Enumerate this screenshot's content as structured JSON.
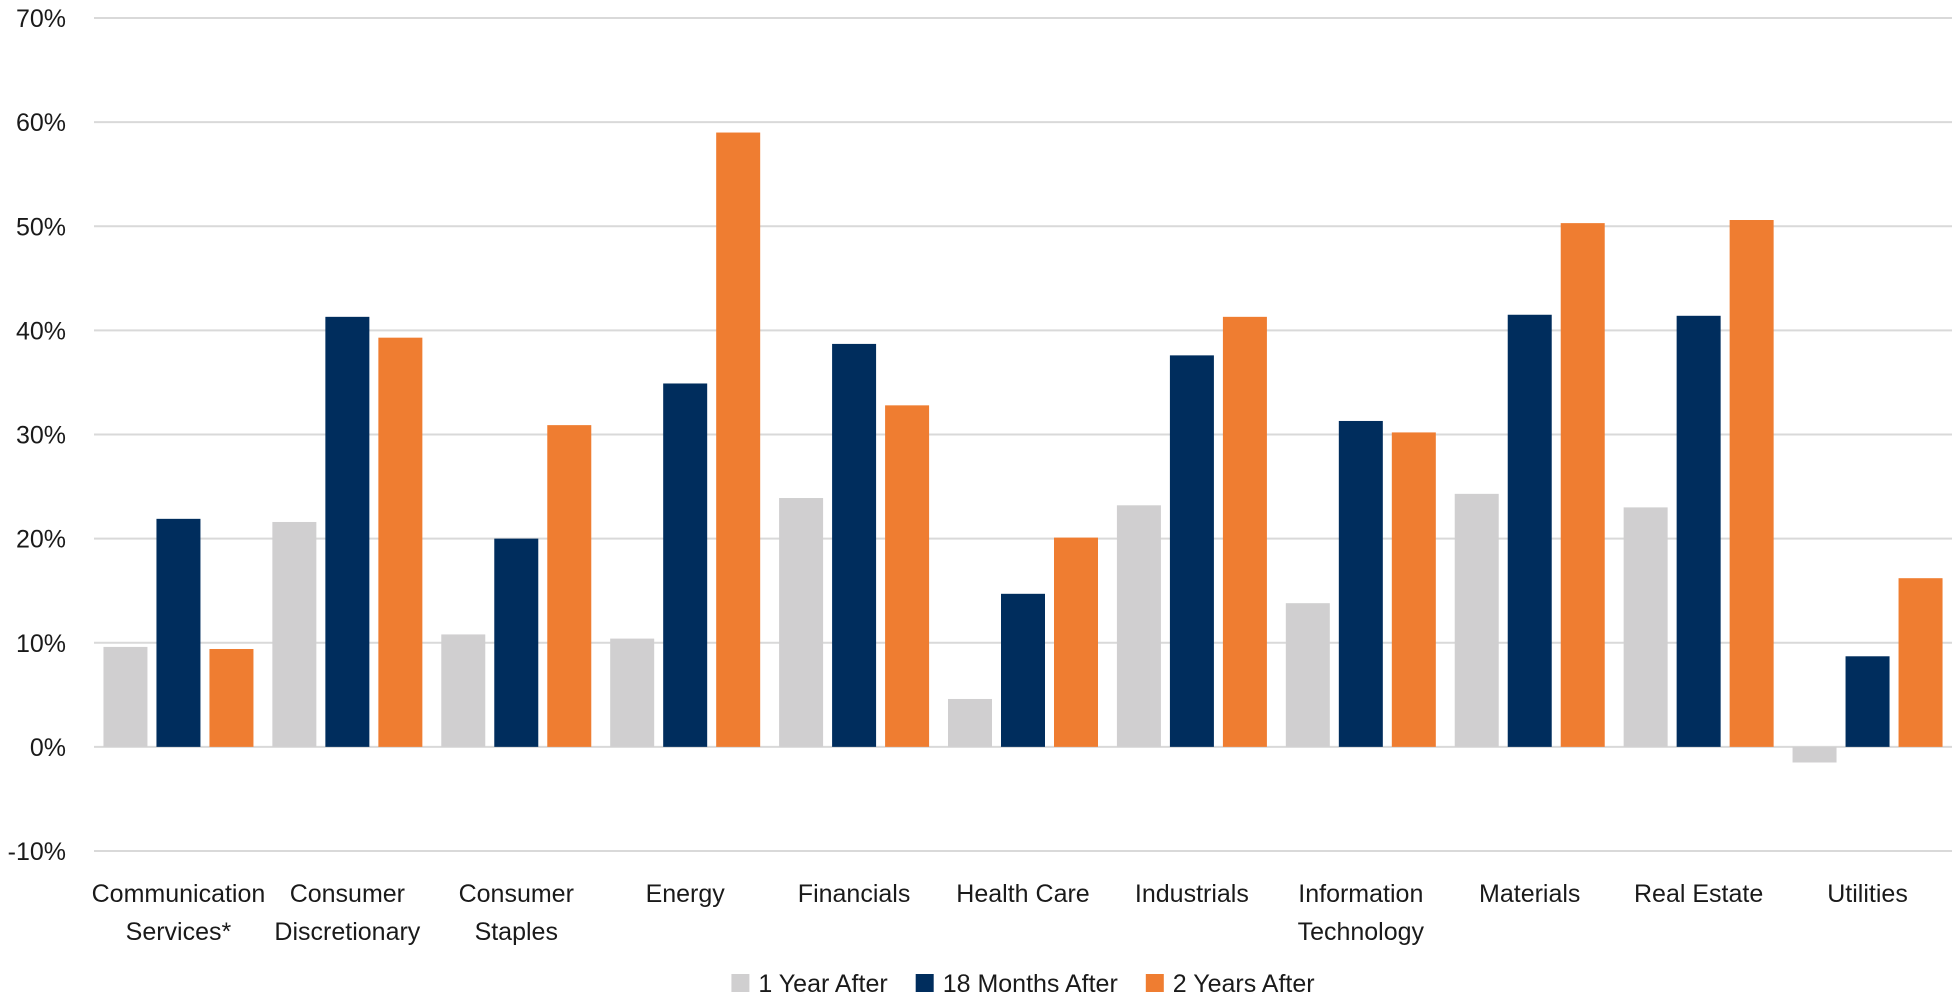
{
  "chart_data": {
    "type": "bar",
    "title": "",
    "xlabel": "",
    "ylabel": "",
    "ylim": [
      -10,
      70
    ],
    "y_ticks": [
      -10,
      0,
      10,
      20,
      30,
      40,
      50,
      60,
      70
    ],
    "y_tick_labels": [
      "-10%",
      "0%",
      "10%",
      "20%",
      "30%",
      "40%",
      "50%",
      "60%",
      "70%"
    ],
    "grid": true,
    "legend_position": "bottom",
    "categories": [
      [
        "Communication",
        "Services*"
      ],
      [
        "Consumer",
        "Discretionary"
      ],
      [
        "Consumer",
        "Staples"
      ],
      [
        "Energy"
      ],
      [
        "Financials"
      ],
      [
        "Health Care"
      ],
      [
        "Industrials"
      ],
      [
        "Information",
        "Technology"
      ],
      [
        "Materials"
      ],
      [
        "Real Estate"
      ],
      [
        "Utilities"
      ]
    ],
    "series": [
      {
        "name": "1 Year After",
        "color": "#d0cfd0",
        "values": [
          9.6,
          21.6,
          10.8,
          10.4,
          23.9,
          4.6,
          23.2,
          13.8,
          24.3,
          23.0,
          -1.5
        ]
      },
      {
        "name": "18 Months After",
        "color": "#002d5d",
        "values": [
          21.9,
          41.3,
          20.0,
          34.9,
          38.7,
          14.7,
          37.6,
          31.3,
          41.5,
          41.4,
          8.7
        ]
      },
      {
        "name": "2 Years After",
        "color": "#ef7d31",
        "values": [
          9.4,
          39.3,
          30.9,
          59.0,
          32.8,
          20.1,
          41.3,
          30.2,
          50.3,
          50.6,
          16.2
        ]
      }
    ]
  }
}
